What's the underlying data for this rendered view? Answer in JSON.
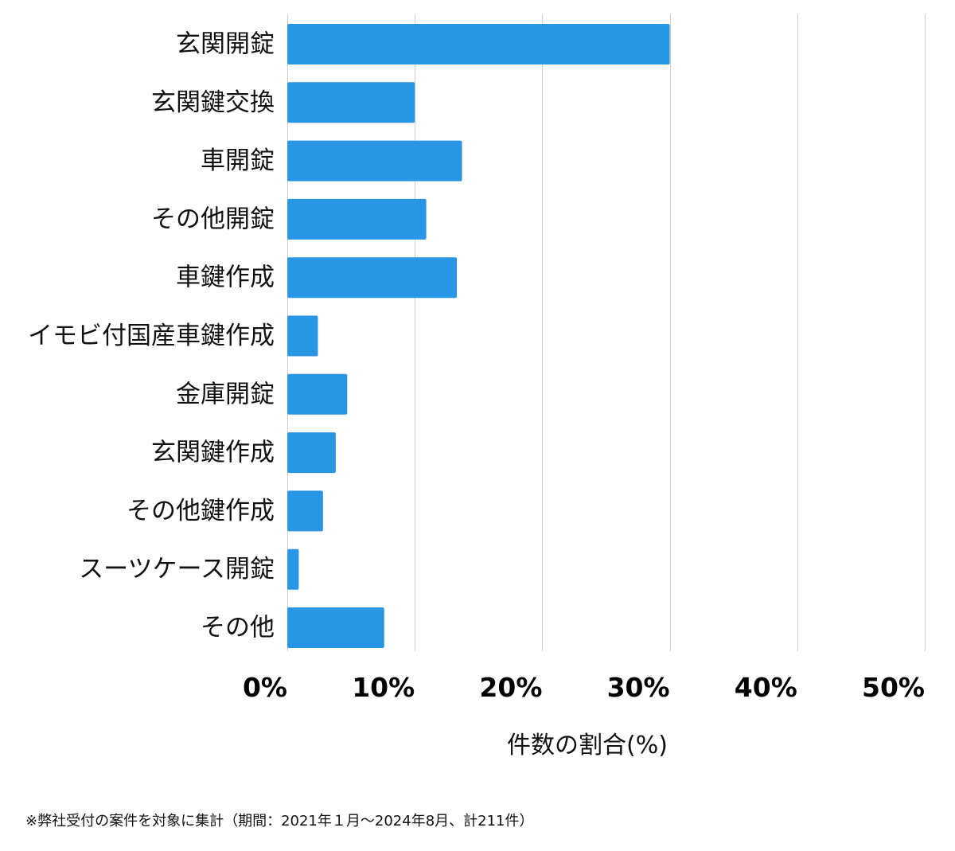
{
  "chart_data": {
    "type": "bar",
    "orientation": "horizontal",
    "categories": [
      "玄関開錠",
      "玄関鍵交換",
      "車開錠",
      "その他開錠",
      "車鍵作成",
      "イモビ付国産車鍵作成",
      "金庫開錠",
      "玄関鍵作成",
      "その他鍵作成",
      "スーツケース開錠",
      "その他"
    ],
    "values": [
      30.0,
      10.0,
      13.7,
      10.9,
      13.3,
      2.4,
      4.7,
      3.8,
      2.8,
      0.9,
      7.6
    ],
    "xlim": [
      0,
      50
    ],
    "x_ticks": [
      0,
      10,
      20,
      30,
      40,
      50
    ],
    "x_tick_labels": [
      "0%",
      "10%",
      "20%",
      "30%",
      "40%",
      "50%"
    ],
    "xlabel": "件数の割合(%)",
    "ylabel": "",
    "title": "",
    "grid": "vertical",
    "legend": "none",
    "bar_color": "#2895e5",
    "grid_color": "#d0d0d0"
  },
  "footnote": "※弊社受付の案件を対象に集計（期間：2021年１月〜2024年8月、計211件）"
}
